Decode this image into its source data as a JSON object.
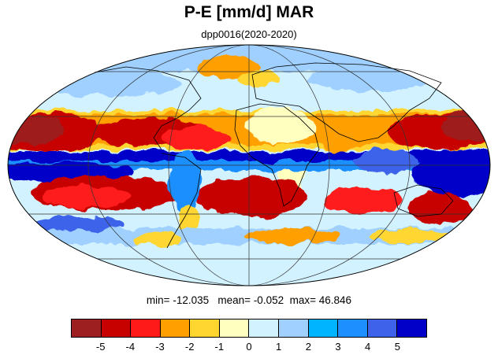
{
  "figure": {
    "title": "P-E [mm/d] MAR",
    "subtitle": "dpp0016(2020-2020)"
  },
  "stats": {
    "min_label": "min=",
    "min": "-12.035",
    "mean_label": "mean=",
    "mean": "-0.052",
    "max_label": "max=",
    "max": "46.846"
  },
  "map": {
    "projection": "Mollweide",
    "variable": "precipitation minus evaporation"
  },
  "colorbar": {
    "colors": [
      "#9e1f1f",
      "#c70000",
      "#ff1a1a",
      "#ff9f00",
      "#ffd630",
      "#ffffc0",
      "#d2f2ff",
      "#9fd0ff",
      "#00b4ff",
      "#1e8fff",
      "#3e63ea",
      "#0000c8"
    ],
    "labels": [
      "-5",
      "-4",
      "-3",
      "-2",
      "-1",
      "0",
      "1",
      "2",
      "3",
      "4",
      "5"
    ]
  }
}
